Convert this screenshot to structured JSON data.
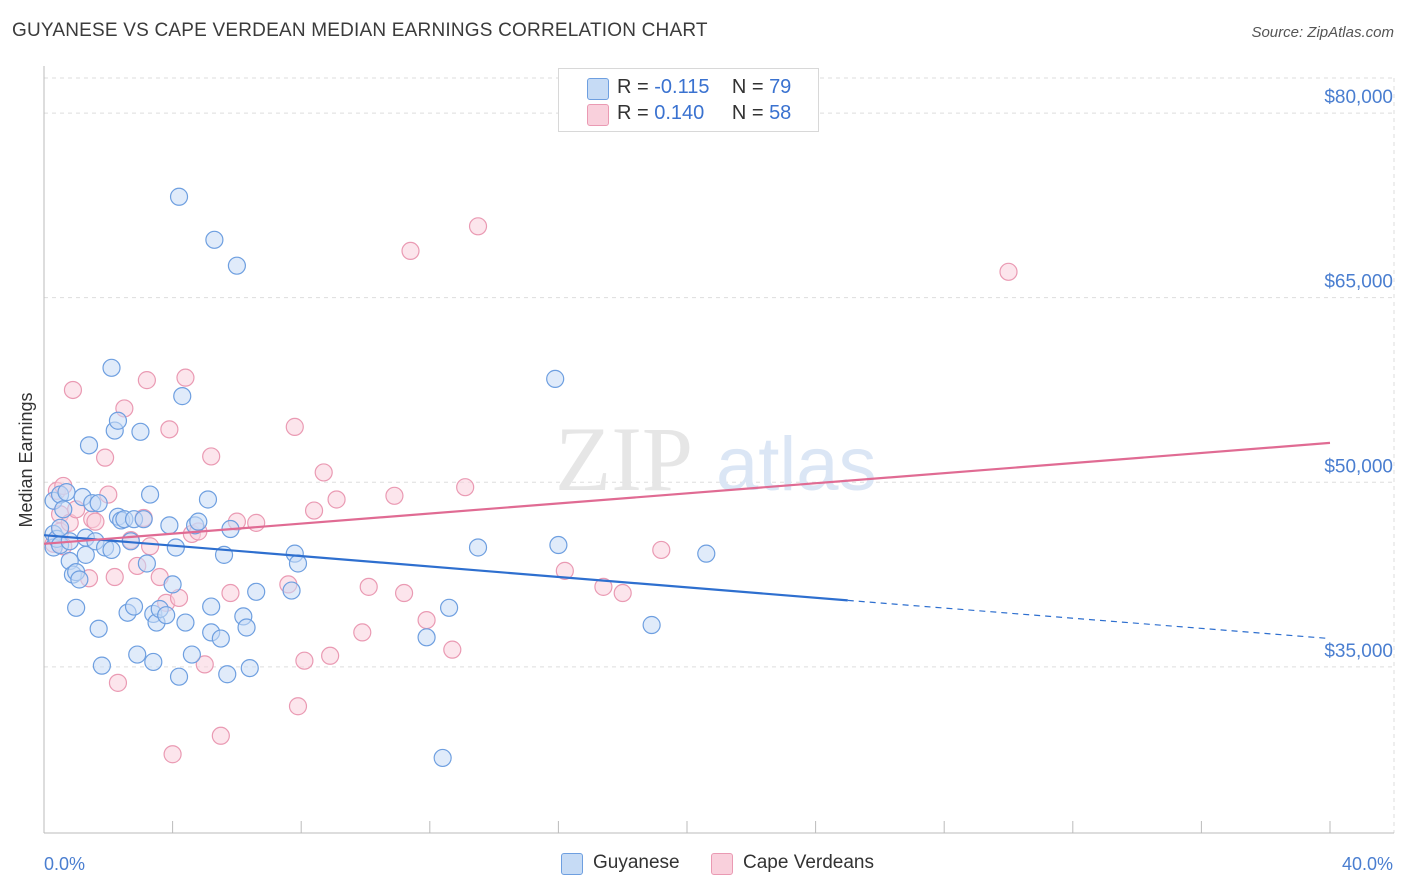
{
  "title": "GUYANESE VS CAPE VERDEAN MEDIAN EARNINGS CORRELATION CHART",
  "source": "Source: ZipAtlas.com",
  "watermark": {
    "zip": "ZIP",
    "atlas": "atlas"
  },
  "legend": {
    "rows": [
      {
        "r_label": "R =",
        "r_value": "-0.115",
        "n_label": "N =",
        "n_value": "79"
      },
      {
        "r_label": "R =",
        "r_value": "0.140",
        "n_label": "N =",
        "n_value": "58"
      }
    ]
  },
  "bottom_legend": [
    "Guyanese",
    "Cape Verdeans"
  ],
  "colors": {
    "guyanese_fill": "#c6dbf5",
    "guyanese_stroke": "#6e9fe0",
    "guyanese_line": "#2e6fcf",
    "cape_fill": "#f9d0dc",
    "cape_stroke": "#ea9ab3",
    "cape_line": "#e06b93",
    "tick_text": "#4a7ed0",
    "grid": "#dddddd"
  },
  "chart_data": {
    "type": "scatter",
    "title": "GUYANESE VS CAPE VERDEAN MEDIAN EARNINGS CORRELATION CHART",
    "xlabel": "",
    "ylabel": "Median Earnings",
    "xlim": [
      0,
      40
    ],
    "ylim": [
      21500,
      83500
    ],
    "x_tick_labels": [
      "0.0%",
      "40.0%"
    ],
    "y_ticks": [
      35000,
      50000,
      65000,
      80000
    ],
    "y_tick_labels": [
      "$35,000",
      "$50,000",
      "$65,000",
      "$80,000"
    ],
    "grid": true,
    "legend_position": "top-center",
    "series": [
      {
        "name": "Guyanese",
        "r": -0.115,
        "n": 79,
        "trend": {
          "x": [
            0,
            25
          ],
          "y": [
            45700,
            40400
          ],
          "dashed_to": [
            40,
            37300
          ]
        },
        "points": [
          [
            0.3,
            45.8
          ],
          [
            0.3,
            44.7
          ],
          [
            0.3,
            48.5
          ],
          [
            0.4,
            45.4
          ],
          [
            0.5,
            49.0
          ],
          [
            0.5,
            46.3
          ],
          [
            0.5,
            44.9
          ],
          [
            0.6,
            47.8
          ],
          [
            0.7,
            49.2
          ],
          [
            0.8,
            45.2
          ],
          [
            0.8,
            43.6
          ],
          [
            0.9,
            42.5
          ],
          [
            1.0,
            42.7
          ],
          [
            1.0,
            39.8
          ],
          [
            1.1,
            42.1
          ],
          [
            1.2,
            48.8
          ],
          [
            1.3,
            45.5
          ],
          [
            1.3,
            44.1
          ],
          [
            1.4,
            53.0
          ],
          [
            1.5,
            48.3
          ],
          [
            1.6,
            45.2
          ],
          [
            1.7,
            48.3
          ],
          [
            1.7,
            38.1
          ],
          [
            1.8,
            35.1
          ],
          [
            1.9,
            44.7
          ],
          [
            2.1,
            59.3
          ],
          [
            2.1,
            44.5
          ],
          [
            2.2,
            54.2
          ],
          [
            2.3,
            55.0
          ],
          [
            2.3,
            47.2
          ],
          [
            2.4,
            46.9
          ],
          [
            2.5,
            47.0
          ],
          [
            2.6,
            39.4
          ],
          [
            2.7,
            45.2
          ],
          [
            2.8,
            39.9
          ],
          [
            2.8,
            47.0
          ],
          [
            2.9,
            36.0
          ],
          [
            3.0,
            54.1
          ],
          [
            3.1,
            47.0
          ],
          [
            3.2,
            43.4
          ],
          [
            3.3,
            49.0
          ],
          [
            3.4,
            35.4
          ],
          [
            3.4,
            39.3
          ],
          [
            3.5,
            38.6
          ],
          [
            3.6,
            39.7
          ],
          [
            3.8,
            39.2
          ],
          [
            3.9,
            46.5
          ],
          [
            4.0,
            41.7
          ],
          [
            4.1,
            44.7
          ],
          [
            4.2,
            73.2
          ],
          [
            4.2,
            34.2
          ],
          [
            4.3,
            57.0
          ],
          [
            4.4,
            38.6
          ],
          [
            4.6,
            36.0
          ],
          [
            4.7,
            46.5
          ],
          [
            4.8,
            46.8
          ],
          [
            5.1,
            48.6
          ],
          [
            5.2,
            37.8
          ],
          [
            5.2,
            39.9
          ],
          [
            5.3,
            69.7
          ],
          [
            5.5,
            37.3
          ],
          [
            5.6,
            44.1
          ],
          [
            5.7,
            34.4
          ],
          [
            5.8,
            46.2
          ],
          [
            6.0,
            67.6
          ],
          [
            6.2,
            39.1
          ],
          [
            6.3,
            38.2
          ],
          [
            6.4,
            34.9
          ],
          [
            6.6,
            41.1
          ],
          [
            7.7,
            41.2
          ],
          [
            7.8,
            44.2
          ],
          [
            7.9,
            43.4
          ],
          [
            11.9,
            37.4
          ],
          [
            12.4,
            27.6
          ],
          [
            12.6,
            39.8
          ],
          [
            13.5,
            44.7
          ],
          [
            15.9,
            58.4
          ],
          [
            16.0,
            44.9
          ],
          [
            18.9,
            38.4
          ],
          [
            20.6,
            44.2
          ]
        ]
      },
      {
        "name": "Cape Verdeans",
        "r": 0.14,
        "n": 58,
        "trend": {
          "x": [
            0,
            40
          ],
          "y": [
            45000,
            53200
          ]
        },
        "points": [
          [
            0.3,
            45.0
          ],
          [
            0.4,
            49.3
          ],
          [
            0.5,
            47.4
          ],
          [
            0.5,
            46.0
          ],
          [
            0.6,
            44.8
          ],
          [
            0.6,
            49.7
          ],
          [
            0.8,
            46.7
          ],
          [
            0.9,
            57.5
          ],
          [
            1.0,
            47.8
          ],
          [
            1.4,
            42.2
          ],
          [
            1.5,
            47.0
          ],
          [
            1.6,
            46.8
          ],
          [
            1.9,
            52.0
          ],
          [
            2.0,
            49.0
          ],
          [
            2.2,
            42.3
          ],
          [
            2.3,
            33.7
          ],
          [
            2.5,
            56.0
          ],
          [
            2.7,
            45.3
          ],
          [
            2.9,
            43.2
          ],
          [
            3.1,
            47.1
          ],
          [
            3.2,
            58.3
          ],
          [
            3.3,
            44.8
          ],
          [
            3.6,
            42.3
          ],
          [
            3.8,
            40.2
          ],
          [
            3.9,
            54.3
          ],
          [
            4.0,
            27.9
          ],
          [
            4.2,
            40.6
          ],
          [
            4.4,
            58.5
          ],
          [
            4.6,
            45.8
          ],
          [
            4.8,
            46.0
          ],
          [
            5.0,
            35.2
          ],
          [
            5.2,
            52.1
          ],
          [
            5.5,
            29.4
          ],
          [
            5.8,
            41.0
          ],
          [
            6.0,
            46.8
          ],
          [
            6.6,
            46.7
          ],
          [
            7.6,
            41.7
          ],
          [
            7.8,
            54.5
          ],
          [
            7.9,
            31.8
          ],
          [
            8.1,
            35.5
          ],
          [
            8.4,
            47.7
          ],
          [
            8.7,
            50.8
          ],
          [
            8.9,
            35.9
          ],
          [
            9.1,
            48.6
          ],
          [
            9.9,
            37.8
          ],
          [
            10.1,
            41.5
          ],
          [
            10.9,
            48.9
          ],
          [
            11.2,
            41.0
          ],
          [
            11.4,
            68.8
          ],
          [
            11.9,
            38.8
          ],
          [
            12.7,
            36.4
          ],
          [
            13.1,
            49.6
          ],
          [
            13.5,
            70.8
          ],
          [
            16.2,
            42.8
          ],
          [
            17.4,
            41.5
          ],
          [
            18.0,
            41.0
          ],
          [
            19.2,
            44.5
          ],
          [
            30.0,
            67.1
          ]
        ]
      }
    ]
  }
}
